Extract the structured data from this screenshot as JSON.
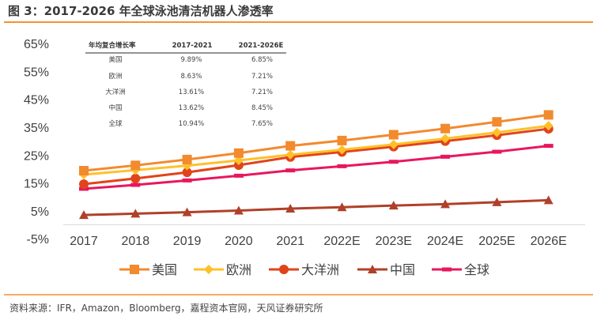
{
  "title": "图 3：2017-2026 年全球泳池清洁机器人渗透率",
  "source": "资料来源：IFR，Amazon，Bloomberg，嘉程资本官网，天风证券研究所",
  "colors": {
    "accent_rule": "#F5912E"
  },
  "table": {
    "headers": [
      "年均复合增长率",
      "2017-2021",
      "2021-2026E"
    ],
    "rows": [
      [
        "美国",
        "9.89%",
        "6.85%"
      ],
      [
        "欧洲",
        "8.63%",
        "7.21%"
      ],
      [
        "大洋洲",
        "13.61%",
        "7.21%"
      ],
      [
        "中国",
        "13.62%",
        "8.45%"
      ],
      [
        "全球",
        "10.94%",
        "7.65%"
      ]
    ]
  },
  "chart_data": {
    "type": "line",
    "title": "",
    "xlabel": "",
    "ylabel": "",
    "categories": [
      "2017",
      "2018",
      "2019",
      "2020",
      "2021",
      "2022E",
      "2023E",
      "2024E",
      "2025E",
      "2026E"
    ],
    "yticks": [
      "65%",
      "55%",
      "45%",
      "35%",
      "25%",
      "15%",
      "5%",
      "-5%"
    ],
    "ylim": [
      -5,
      65
    ],
    "grid": false,
    "legend": "bottom",
    "series": [
      {
        "name": "美国",
        "marker": "square",
        "color": "#F28A2E",
        "values": [
          19.4,
          21.3,
          23.4,
          25.7,
          28.3,
          30.2,
          32.3,
          34.5,
          36.9,
          39.4
        ]
      },
      {
        "name": "欧洲",
        "marker": "diamond",
        "color": "#FFC02A",
        "values": [
          18.0,
          19.6,
          21.2,
          23.1,
          25.1,
          26.9,
          28.8,
          30.9,
          33.1,
          35.5
        ]
      },
      {
        "name": "大洋洲",
        "marker": "circle",
        "color": "#E0441A",
        "values": [
          14.6,
          16.6,
          18.8,
          21.4,
          24.3,
          26.1,
          28.0,
          30.0,
          32.1,
          34.4
        ]
      },
      {
        "name": "中国",
        "marker": "triangle",
        "color": "#B0402A",
        "values": [
          3.5,
          4.0,
          4.5,
          5.1,
          5.8,
          6.3,
          6.9,
          7.4,
          8.1,
          8.8
        ]
      },
      {
        "name": "全球",
        "marker": "dash",
        "color": "#E8175D",
        "values": [
          12.9,
          14.3,
          15.9,
          17.6,
          19.5,
          21.0,
          22.6,
          24.4,
          26.2,
          28.3
        ]
      }
    ]
  }
}
